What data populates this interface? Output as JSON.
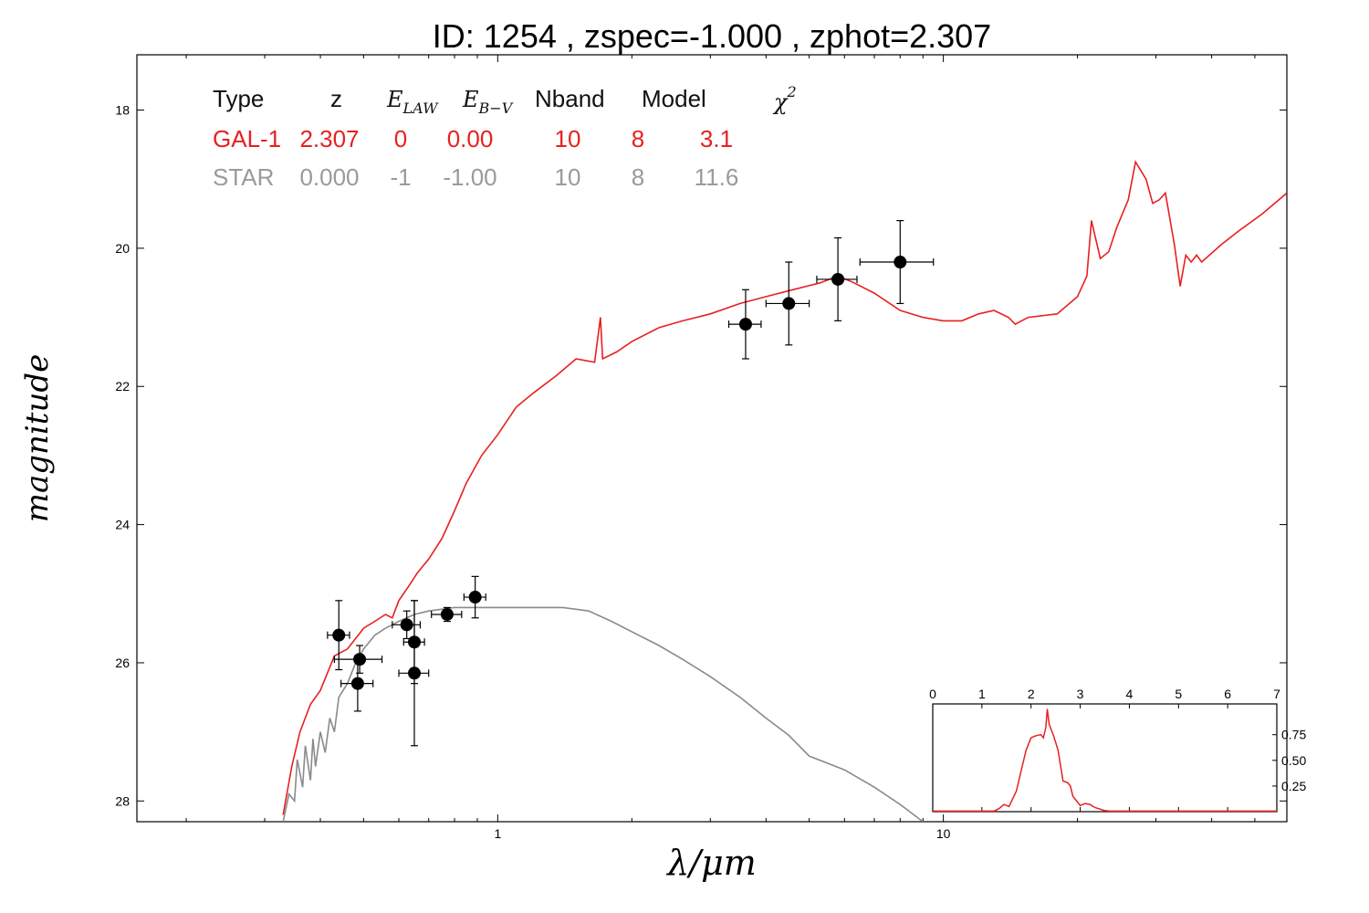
{
  "title": "ID:  1254  , zspec=-1.000 , zphot=2.307",
  "table": {
    "headers": {
      "type": "Type",
      "z": "z",
      "elaw": "E",
      "elaw_sub": "LAW",
      "ebv": "E",
      "ebv_sub": "B−V",
      "nband": "Nband",
      "model": "Model",
      "chi": "χ",
      "chi_sup": "2"
    },
    "rows": [
      {
        "type": "GAL-1",
        "z": "2.307",
        "elaw": "0",
        "ebv": "0.00",
        "nband": "10",
        "model": "8",
        "chi2": "3.1",
        "color": "#e8201f"
      },
      {
        "type": "STAR",
        "z": "0.000",
        "elaw": "-1",
        "ebv": "-1.00",
        "nband": "10",
        "model": "8",
        "chi2": "11.6",
        "color": "#9a9a9a"
      }
    ]
  },
  "chart_data": [
    {
      "type": "line",
      "role": "main",
      "xlabel": "λ/μm",
      "ylabel": "magnitude",
      "x_scale": "log",
      "xlim": [
        0.155,
        59
      ],
      "ylim": [
        28.3,
        17.2
      ],
      "x_tick_labels": [
        "1",
        "10"
      ],
      "x_ticks": [
        1,
        10
      ],
      "y_ticks": [
        18,
        20,
        22,
        24,
        26,
        28
      ],
      "y_tick_labels": [
        "18",
        "20",
        "22",
        "24",
        "26",
        "28"
      ],
      "grid": false,
      "series": [
        {
          "color": "#e8201f",
          "points": [
            [
              0.33,
              28.2
            ],
            [
              0.345,
              27.5
            ],
            [
              0.36,
              27.0
            ],
            [
              0.38,
              26.6
            ],
            [
              0.4,
              26.4
            ],
            [
              0.43,
              25.9
            ],
            [
              0.46,
              25.8
            ],
            [
              0.5,
              25.5
            ],
            [
              0.53,
              25.4
            ],
            [
              0.56,
              25.3
            ],
            [
              0.58,
              25.35
            ],
            [
              0.6,
              25.1
            ],
            [
              0.63,
              24.9
            ],
            [
              0.66,
              24.7
            ],
            [
              0.7,
              24.5
            ],
            [
              0.75,
              24.2
            ],
            [
              0.8,
              23.8
            ],
            [
              0.85,
              23.4
            ],
            [
              0.92,
              23.0
            ],
            [
              1.0,
              22.7
            ],
            [
              1.1,
              22.3
            ],
            [
              1.2,
              22.1
            ],
            [
              1.35,
              21.85
            ],
            [
              1.5,
              21.6
            ],
            [
              1.65,
              21.65
            ],
            [
              1.7,
              21.0
            ],
            [
              1.72,
              21.6
            ],
            [
              1.85,
              21.5
            ],
            [
              2.0,
              21.35
            ],
            [
              2.3,
              21.15
            ],
            [
              2.6,
              21.05
            ],
            [
              3.0,
              20.95
            ],
            [
              3.5,
              20.8
            ],
            [
              4.0,
              20.7
            ],
            [
              4.6,
              20.6
            ],
            [
              5.3,
              20.5
            ],
            [
              5.8,
              20.4
            ],
            [
              6.3,
              20.5
            ],
            [
              7.0,
              20.65
            ],
            [
              8.0,
              20.9
            ],
            [
              9.0,
              21.0
            ],
            [
              10.0,
              21.05
            ],
            [
              11.0,
              21.05
            ],
            [
              12.0,
              20.95
            ],
            [
              13.0,
              20.9
            ],
            [
              14.0,
              21.0
            ],
            [
              14.5,
              21.1
            ],
            [
              15.5,
              21.0
            ],
            [
              18.0,
              20.95
            ],
            [
              20.0,
              20.7
            ],
            [
              21.0,
              20.4
            ],
            [
              21.5,
              19.6
            ],
            [
              22.5,
              20.15
            ],
            [
              23.5,
              20.05
            ],
            [
              24.5,
              19.7
            ],
            [
              26.0,
              19.3
            ],
            [
              27.0,
              18.75
            ],
            [
              28.5,
              19.0
            ],
            [
              29.5,
              19.35
            ],
            [
              30.5,
              19.3
            ],
            [
              31.5,
              19.2
            ],
            [
              33.0,
              19.95
            ],
            [
              34.0,
              20.55
            ],
            [
              35.0,
              20.1
            ],
            [
              36.0,
              20.2
            ],
            [
              37.0,
              20.1
            ],
            [
              38.0,
              20.2
            ],
            [
              42.0,
              19.95
            ],
            [
              46.0,
              19.75
            ],
            [
              52.0,
              19.5
            ],
            [
              59.0,
              19.2
            ]
          ]
        },
        {
          "color": "#8a8a8a",
          "points": [
            [
              0.33,
              28.3
            ],
            [
              0.34,
              27.9
            ],
            [
              0.35,
              28.0
            ],
            [
              0.355,
              27.4
            ],
            [
              0.365,
              27.8
            ],
            [
              0.37,
              27.2
            ],
            [
              0.38,
              27.7
            ],
            [
              0.385,
              27.1
            ],
            [
              0.39,
              27.5
            ],
            [
              0.4,
              27.0
            ],
            [
              0.41,
              27.3
            ],
            [
              0.42,
              26.8
            ],
            [
              0.43,
              27.0
            ],
            [
              0.44,
              26.5
            ],
            [
              0.46,
              26.3
            ],
            [
              0.48,
              26.0
            ],
            [
              0.5,
              25.8
            ],
            [
              0.53,
              25.6
            ],
            [
              0.56,
              25.5
            ],
            [
              0.6,
              25.4
            ],
            [
              0.65,
              25.3
            ],
            [
              0.7,
              25.25
            ],
            [
              0.8,
              25.2
            ],
            [
              0.9,
              25.2
            ],
            [
              1.0,
              25.2
            ],
            [
              1.2,
              25.2
            ],
            [
              1.4,
              25.2
            ],
            [
              1.6,
              25.25
            ],
            [
              1.8,
              25.4
            ],
            [
              2.0,
              25.55
            ],
            [
              2.3,
              25.75
            ],
            [
              2.6,
              25.95
            ],
            [
              3.0,
              26.2
            ],
            [
              3.5,
              26.5
            ],
            [
              4.0,
              26.8
            ],
            [
              4.5,
              27.05
            ],
            [
              5.0,
              27.35
            ],
            [
              6.0,
              27.55
            ],
            [
              7.0,
              27.8
            ],
            [
              8.0,
              28.05
            ],
            [
              9.0,
              28.3
            ]
          ]
        }
      ],
      "points": [
        {
          "x": 0.44,
          "y": 25.6,
          "xerr": 0.025,
          "yerr": 0.5
        },
        {
          "x": 0.49,
          "y": 25.95,
          "xerr": 0.06,
          "yerr": 0.2
        },
        {
          "x": 0.485,
          "y": 26.3,
          "xerr": 0.04,
          "yerr": 0.4
        },
        {
          "x": 0.625,
          "y": 25.45,
          "xerr": 0.045,
          "yerr": 0.2
        },
        {
          "x": 0.65,
          "y": 25.7,
          "xerr": 0.035,
          "yerr": 0.6
        },
        {
          "x": 0.65,
          "y": 26.15,
          "xerr": 0.05,
          "yerr": 1.05
        },
        {
          "x": 0.77,
          "y": 25.3,
          "xerr": 0.06,
          "yerr": 0.1
        },
        {
          "x": 0.89,
          "y": 25.05,
          "xerr": 0.05,
          "yerr": 0.3
        },
        {
          "x": 3.6,
          "y": 21.1,
          "xerr": 0.3,
          "yerr": 0.5
        },
        {
          "x": 4.5,
          "y": 20.8,
          "xerr": 0.5,
          "yerr": 0.6
        },
        {
          "x": 5.8,
          "y": 20.45,
          "xerr": 0.6,
          "yerr": 0.6
        },
        {
          "x": 8.0,
          "y": 20.2,
          "xerr": 1.5,
          "yerr": 0.6
        }
      ]
    },
    {
      "type": "line",
      "role": "inset",
      "xlim": [
        0,
        7
      ],
      "ylim": [
        0,
        1.05
      ],
      "x_ticks": [
        0,
        1,
        2,
        3,
        4,
        5,
        6,
        7
      ],
      "x_tick_labels": [
        "0",
        "1",
        "2",
        "3",
        "4",
        "5",
        "6",
        "7"
      ],
      "y_ticks": [
        0.25,
        0.5,
        0.75
      ],
      "y_tick_labels": [
        "0.25",
        "0.50",
        "0.75"
      ],
      "series": [
        {
          "color": "#e8201f",
          "points": [
            [
              0,
              0.005
            ],
            [
              1.25,
              0.005
            ],
            [
              1.35,
              0.03
            ],
            [
              1.45,
              0.07
            ],
            [
              1.55,
              0.05
            ],
            [
              1.6,
              0.1
            ],
            [
              1.7,
              0.2
            ],
            [
              1.8,
              0.4
            ],
            [
              1.9,
              0.6
            ],
            [
              2.0,
              0.72
            ],
            [
              2.1,
              0.74
            ],
            [
              2.2,
              0.75
            ],
            [
              2.25,
              0.72
            ],
            [
              2.3,
              0.82
            ],
            [
              2.33,
              1.0
            ],
            [
              2.37,
              0.85
            ],
            [
              2.45,
              0.75
            ],
            [
              2.55,
              0.6
            ],
            [
              2.6,
              0.45
            ],
            [
              2.65,
              0.3
            ],
            [
              2.75,
              0.28
            ],
            [
              2.8,
              0.25
            ],
            [
              2.85,
              0.15
            ],
            [
              2.9,
              0.12
            ],
            [
              3.0,
              0.06
            ],
            [
              3.1,
              0.08
            ],
            [
              3.2,
              0.07
            ],
            [
              3.3,
              0.04
            ],
            [
              3.5,
              0.01
            ],
            [
              3.6,
              0.005
            ],
            [
              7.0,
              0.005
            ]
          ]
        }
      ]
    }
  ]
}
